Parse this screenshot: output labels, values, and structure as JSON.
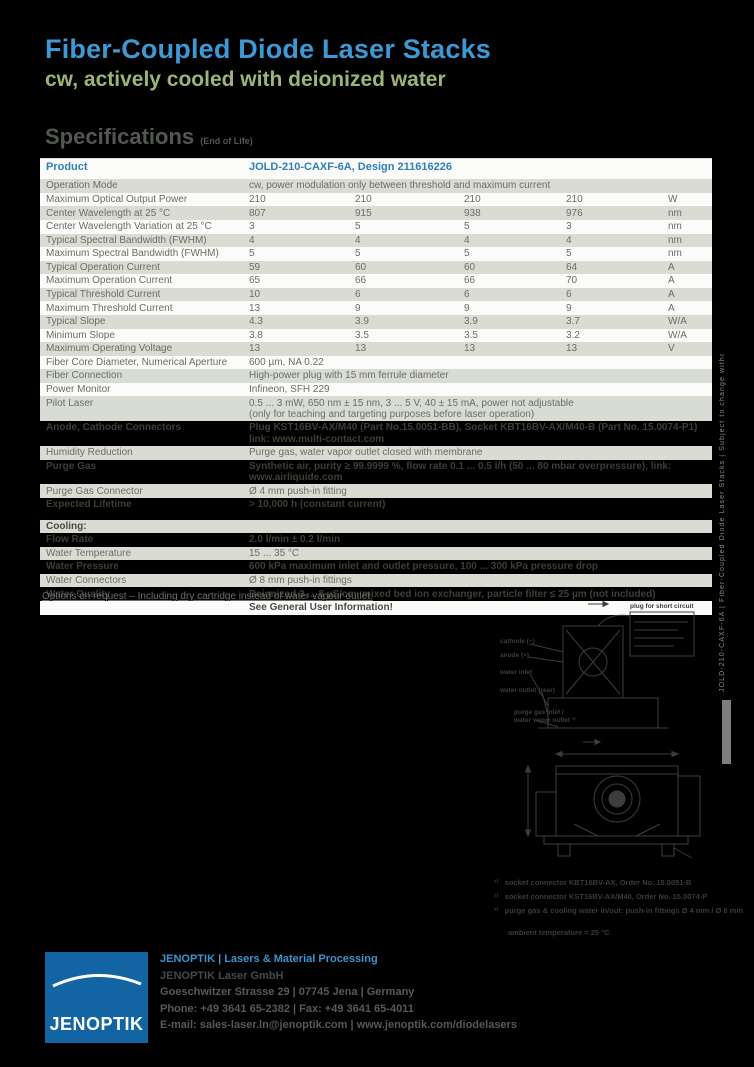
{
  "page": {
    "title": "Fiber-Coupled Diode Laser Stacks",
    "subtitle": "cw, actively cooled with deionized water",
    "section_heading": "Specifications",
    "section_heading_suffix": "(End of Life)"
  },
  "spec": {
    "product_label": "Product",
    "product_value": "JOLD-210-CAXF-6A, Design 211616226",
    "rows": [
      {
        "label": "Operation Mode",
        "span": "cw, power modulation only between threshold and maximum current",
        "bg": "sage"
      },
      {
        "label": "Maximum Optical Output Power",
        "values": [
          "210",
          "210",
          "210",
          "210"
        ],
        "unit": "W",
        "bg": "white"
      },
      {
        "label": "Center Wavelength at 25 °C",
        "values": [
          "807",
          "915",
          "938",
          "976"
        ],
        "unit": "nm",
        "bg": "sage"
      },
      {
        "label": "Center Wavelength Variation at 25 °C",
        "values": [
          "3",
          "5",
          "5",
          "3"
        ],
        "unit": "nm",
        "bg": "white"
      },
      {
        "label": "Typical Spectral Bandwidth (FWHM)",
        "values": [
          "4",
          "4",
          "4",
          "4"
        ],
        "unit": "nm",
        "bg": "sage"
      },
      {
        "label": "Maximum Spectral Bandwidth (FWHM)",
        "values": [
          "5",
          "5",
          "5",
          "5"
        ],
        "unit": "nm",
        "bg": "white"
      },
      {
        "label": "Typical Operation Current",
        "values": [
          "59",
          "60",
          "60",
          "64"
        ],
        "unit": "A",
        "bg": "sage"
      },
      {
        "label": "Maximum Operation Current",
        "values": [
          "65",
          "66",
          "66",
          "70"
        ],
        "unit": "A",
        "bg": "white"
      },
      {
        "label": "Typical Threshold Current",
        "values": [
          "10",
          "6",
          "6",
          "6"
        ],
        "unit": "A",
        "bg": "sage"
      },
      {
        "label": "Maximum Threshold Current",
        "values": [
          "13",
          "9",
          "9",
          "9"
        ],
        "unit": "A",
        "bg": "white"
      },
      {
        "label": "Typical Slope",
        "values": [
          "4.3",
          "3.9",
          "3.9",
          "3.7"
        ],
        "unit": "W/A",
        "bg": "sage"
      },
      {
        "label": "Minimum Slope",
        "values": [
          "3.8",
          "3.5",
          "3.5",
          "3.2"
        ],
        "unit": "W/A",
        "bg": "white"
      },
      {
        "label": "Maximum Operating Voltage",
        "values": [
          "13",
          "13",
          "13",
          "13"
        ],
        "unit": "V",
        "bg": "sage"
      },
      {
        "label": "Fiber Core Diameter, Numerical Aperture",
        "span": "600 µm, NA 0.22",
        "bg": "white"
      },
      {
        "label": "Fiber Connection",
        "span": "High-power plug with 15 mm ferrule diameter",
        "bg": "sage"
      },
      {
        "label": "Power Monitor",
        "span": "Infineon, SFH 229",
        "bg": "white"
      },
      {
        "label": "Pilot Laser",
        "lines": [
          "0.5 ... 3 mW, 650 nm ± 15 nm, 3 ... 5 V, 40 ± 15 mA, power not adjustable",
          "(only for teaching and targeting purposes before laser operation)"
        ],
        "bg": "sage"
      },
      {
        "label": "Anode, Cathode Connectors",
        "lines": [
          "Plug KST16BV-AX/M40 (Part No.15.0051-BB), Socket KBT16BV-AX/M40-B (Part No. 15.0074-P1)",
          "link: www.multi-contact.com"
        ],
        "bg": "dark"
      },
      {
        "label": "Humidity Reduction",
        "span": "Purge gas, water vapor outlet closed with membrane",
        "bg": "sage"
      },
      {
        "label": "Purge Gas",
        "span": "Synthetic air, purity ≥ 99.9999 %, flow rate 0.1 ... 0.5 l/h (50 ... 80 mbar overpressure), link: www.airliquide.com",
        "bg": "dark"
      },
      {
        "label": "Purge Gas Connector",
        "span": "Ø 4 mm push-in fitting",
        "bg": "sage"
      },
      {
        "label": "Expected Lifetime",
        "span": "> 10,000 h (constant current)",
        "bg": "dark"
      },
      {
        "label": "Cooling:",
        "span": "",
        "bg": "sage",
        "bold": true,
        "gap": true
      },
      {
        "label": "Flow Rate",
        "span": "2.0 l/min ± 0.2 l/min",
        "bg": "dark"
      },
      {
        "label": "Water Temperature",
        "span": "15 ... 35 °C",
        "bg": "sage"
      },
      {
        "label": "Water Pressure",
        "span": "600 kPa maximum inlet and outlet pressure, 100 ... 300 kPa pressure drop",
        "bg": "dark"
      },
      {
        "label": "Water Connectors",
        "span": "Ø 8 mm push-in fittings",
        "bg": "sage"
      },
      {
        "label": "Water Quality",
        "span": "Deionized 3 ... 8 µS/cm, mixed bed ion exchanger, particle filter ≤ 25 µm (not included)",
        "bg": "dark"
      },
      {
        "label": "",
        "span": "See General User Information!",
        "bg": "white",
        "bold_span": true
      }
    ],
    "options_note": "Options on request  –  Including dry cartridge instead of water vapour outlet."
  },
  "drawing": {
    "side_labels": [
      "cathode (−)",
      "anode (+)",
      "water inlet",
      "water outlet (rear)",
      "purge gas inlet /",
      "water vapor outlet ³⁾"
    ],
    "plug_note_title": "plug for short circuit",
    "plug_note_lines": [
      "remove",
      "before",
      "operation",
      "(protection)"
    ],
    "notes": [
      {
        "marker": "¹⁾",
        "text": "socket connector KBT16BV-AX, Order No. 15.0051-B"
      },
      {
        "marker": "²⁾",
        "text": "socket connector KST16BV-AX/M40, Order No. 15.0074-P"
      },
      {
        "marker": "³⁾",
        "text": "purge gas & cooling water in/out: push-in fittings Ø 4 mm / Ø 8 mm"
      }
    ],
    "ambient_note": "ambient temperature = 25 °C"
  },
  "side_note": "JOLD-210-CAXF-6A  |  Fiber-Coupled Diode Laser Stacks  |  Subject to change without prior notice",
  "footer": {
    "logo_text": "JENOPTIK",
    "division_line": "JENOPTIK  |  Lasers & Material Processing",
    "company": "JENOPTIK Laser GmbH",
    "address": "Goeschwitzer Strasse 29  |  07745 Jena  |  Germany",
    "phone_fax": "Phone: +49 3641 65-2382  |  Fax: +49 3641 65-4011",
    "email_web": "E-mail: sales-laser.ln@jenoptik.com  |  www.jenoptik.com/diodelasers"
  },
  "colors": {
    "title_blue": "#3d99d6",
    "subtitle_green": "#9eb377",
    "row_sage": "#d9dcd2",
    "product_blue": "#2e80b9",
    "logo_blue": "#1264a3",
    "footer_blue": "#3f93cb",
    "background": "#000000"
  }
}
